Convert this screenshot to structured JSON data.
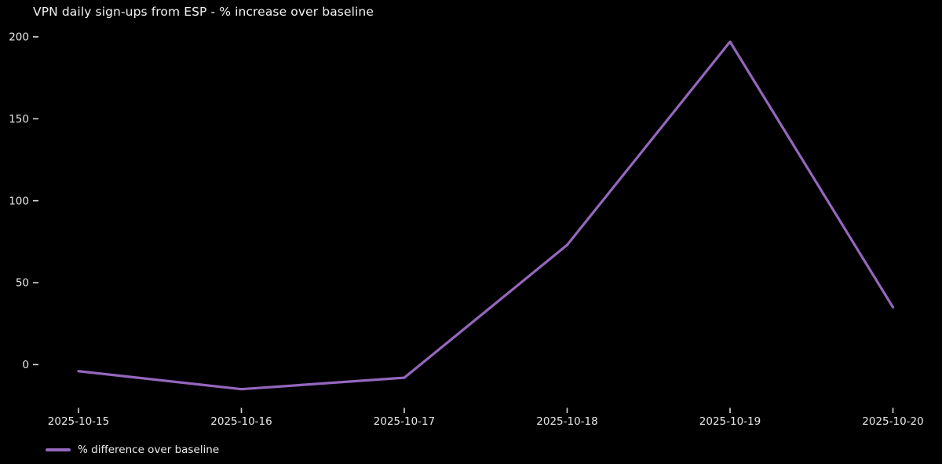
{
  "colors": {
    "background": "#000000",
    "line": "#9467bd",
    "tick_mark": "#d8d8d8",
    "tick_text": "#e8e8e8",
    "title_text": "#f2f2f2"
  },
  "legend": {
    "label": "% difference over baseline"
  },
  "chart_data": {
    "type": "line",
    "title": "VPN daily sign-ups from ESP - % increase over baseline",
    "x": [
      "2025-10-15",
      "2025-10-16",
      "2025-10-17",
      "2025-10-18",
      "2025-10-19",
      "2025-10-20"
    ],
    "series": [
      {
        "name": "% difference over baseline",
        "color": "#9467bd",
        "values": [
          -4,
          -15,
          -8,
          73,
          197,
          35
        ]
      }
    ],
    "xlabel": "",
    "ylabel": "",
    "yticks": [
      0,
      50,
      100,
      150,
      200
    ],
    "ylim": [
      -22,
      205
    ],
    "grid": false,
    "axis_spines": false,
    "legend_position": "lower-left",
    "background": "#000000"
  }
}
